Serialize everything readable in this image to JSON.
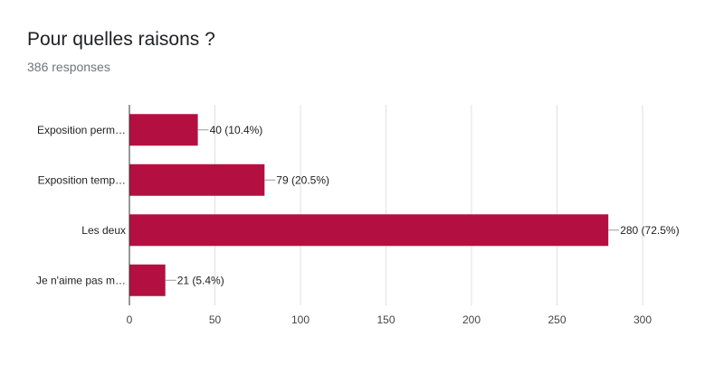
{
  "header": {
    "title": "Pour quelles raisons ?",
    "subtitle": "386 responses"
  },
  "chart_data": {
    "type": "bar",
    "orientation": "horizontal",
    "categories": [
      "Exposition perm…",
      "Exposition temp…",
      "Les deux",
      "Je n'aime pas m…"
    ],
    "values": [
      40,
      79,
      280,
      21
    ],
    "data_labels": [
      "40 (10.4%)",
      "79 (20.5%)",
      "280 (72.5%)",
      "21 (5.4%)"
    ],
    "xlim": [
      0,
      300
    ],
    "xticks": [
      0,
      50,
      100,
      150,
      200,
      250,
      300
    ],
    "grid": true,
    "bar_color": "#b31041"
  }
}
